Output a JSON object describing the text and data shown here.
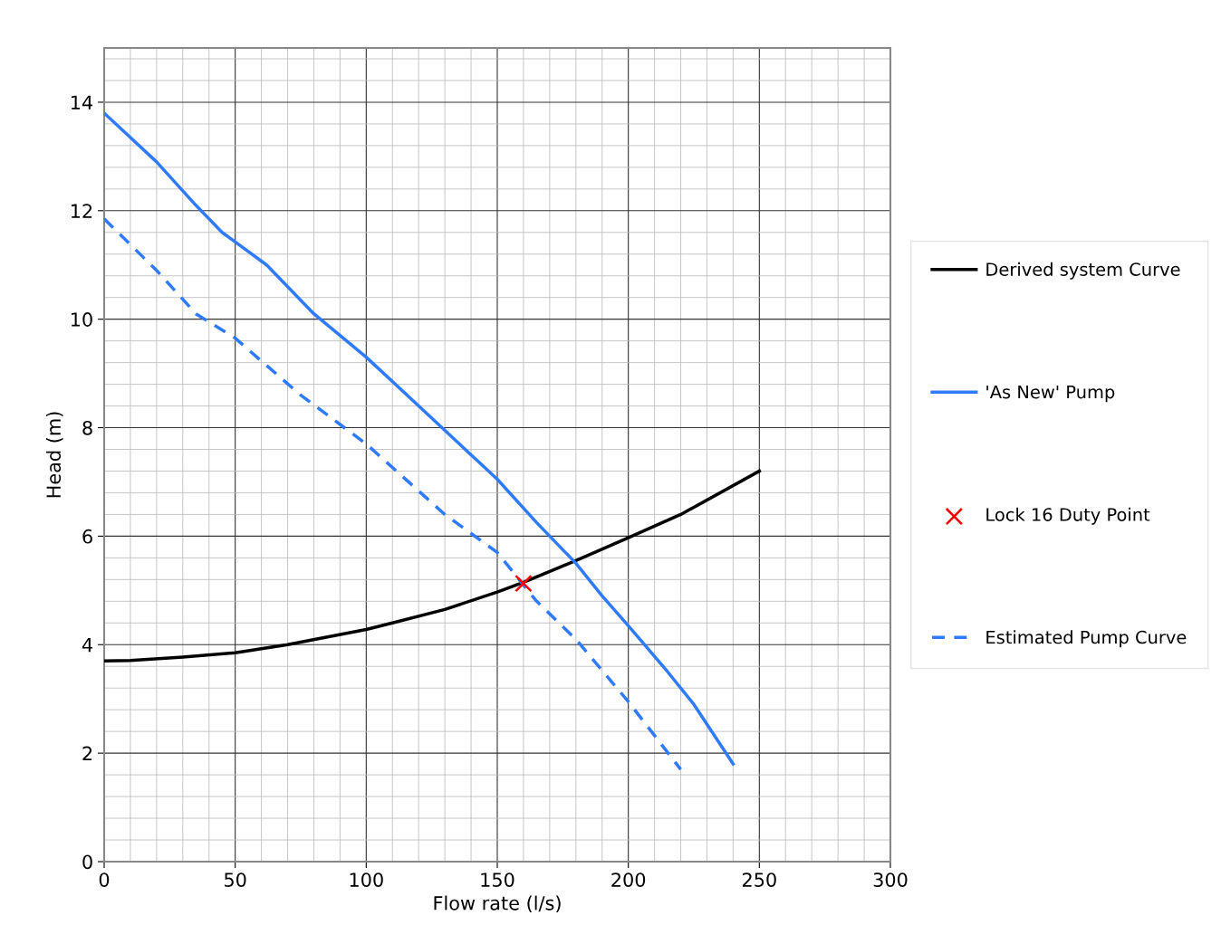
{
  "chart_data": {
    "type": "line",
    "xlabel": "Flow rate (l/s)",
    "ylabel": "Head (m)",
    "xlim": [
      0,
      300
    ],
    "xticks": [
      0,
      50,
      100,
      150,
      200,
      250,
      300
    ],
    "ylim": [
      0,
      15
    ],
    "yticks": [
      0,
      2,
      4,
      6,
      8,
      10,
      12,
      14
    ],
    "grid": true,
    "legend": "right",
    "series": [
      {
        "name": "Derived system Curve",
        "color": "#000000",
        "line_style": "solid",
        "x": [
          0,
          10,
          30,
          50,
          70,
          100,
          110,
          130,
          150,
          160,
          180,
          200,
          220,
          250
        ],
        "values": [
          3.7,
          3.71,
          3.77,
          3.85,
          4.0,
          4.28,
          4.4,
          4.65,
          4.97,
          5.15,
          5.55,
          5.97,
          6.4,
          7.2
        ]
      },
      {
        "name": "'As New' Pump",
        "color": "#2f7bff",
        "line_style": "solid",
        "x": [
          0,
          20,
          35,
          45,
          62,
          80,
          100,
          120,
          150,
          165,
          180,
          190,
          200,
          215,
          225,
          240
        ],
        "values": [
          13.8,
          12.9,
          12.1,
          11.6,
          11.0,
          10.1,
          9.3,
          8.4,
          7.05,
          6.25,
          5.5,
          4.9,
          4.35,
          3.5,
          2.9,
          1.8
        ]
      },
      {
        "name": "Lock 16 Duty Point",
        "type": "scatter",
        "color": "#ff0000",
        "marker": "cross",
        "x": [
          160
        ],
        "values": [
          5.13
        ]
      },
      {
        "name": "Estimated Pump Curve",
        "color": "#2f7bff",
        "line_style": "dashed",
        "x": [
          0,
          20,
          35,
          50,
          75,
          100,
          130,
          150,
          165,
          180,
          200,
          220
        ],
        "values": [
          11.85,
          10.9,
          10.1,
          9.65,
          8.6,
          7.7,
          6.4,
          5.7,
          4.8,
          4.1,
          2.95,
          1.7
        ]
      }
    ]
  }
}
